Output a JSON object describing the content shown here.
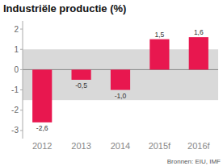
{
  "chart_data": {
    "type": "bar",
    "title": "Industriële productie (%)",
    "categories": [
      "2012",
      "2013",
      "2014",
      "2015f",
      "2016f"
    ],
    "values": [
      -2.6,
      -0.5,
      -1.0,
      1.5,
      1.6
    ],
    "value_labels": [
      "-2,6",
      "-0,5",
      "-1,0",
      "1,5",
      "1,6"
    ],
    "data_labels": true,
    "color": "#e8174f",
    "ylim": [
      -3.4,
      2.4
    ],
    "yticks": [
      -3,
      -2,
      -1,
      0,
      1,
      2
    ],
    "band": {
      "ymin": -1.5,
      "ymax": 1.0,
      "color": "#d9d9d9"
    },
    "source": "Bronnen: EIU, IMF"
  }
}
